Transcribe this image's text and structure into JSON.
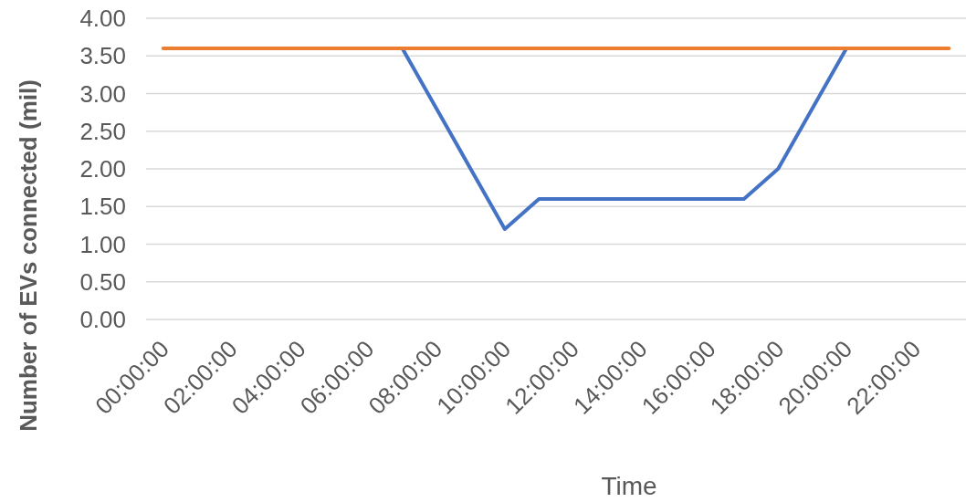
{
  "chart_data": {
    "type": "line",
    "xlabel": "Time",
    "ylabel": "Number of EVs connected (mil)",
    "categories": [
      "00:00:00",
      null,
      "02:00:00",
      null,
      "04:00:00",
      null,
      "06:00:00",
      null,
      "08:00:00",
      null,
      "10:00:00",
      null,
      "12:00:00",
      null,
      "14:00:00",
      null,
      "16:00:00",
      null,
      "18:00:00",
      null,
      "20:00:00",
      null,
      "22:00:00",
      null
    ],
    "series": [
      {
        "color": "#4472c4",
        "values": [
          null,
          null,
          null,
          null,
          null,
          null,
          null,
          3.6,
          2.8,
          2.0,
          1.2,
          1.6,
          1.6,
          1.6,
          1.6,
          1.6,
          1.6,
          1.6,
          2.0,
          2.8,
          3.6,
          null,
          null,
          null
        ]
      },
      {
        "color": "#ed7d31",
        "values": [
          3.6,
          3.6,
          3.6,
          3.6,
          3.6,
          3.6,
          3.6,
          3.6,
          3.6,
          3.6,
          3.6,
          3.6,
          3.6,
          3.6,
          3.6,
          3.6,
          3.6,
          3.6,
          3.6,
          3.6,
          3.6,
          3.6,
          3.6,
          3.6
        ]
      }
    ],
    "ylim": [
      0,
      4
    ],
    "yticks": [
      {
        "value": 0,
        "label": "0.00"
      },
      {
        "value": 0.5,
        "label": "0.50"
      },
      {
        "value": 1,
        "label": "1.00"
      },
      {
        "value": 1.5,
        "label": "1.50"
      },
      {
        "value": 2,
        "label": "2.00"
      },
      {
        "value": 2.5,
        "label": "2.50"
      },
      {
        "value": 3,
        "label": "3.00"
      },
      {
        "value": 3.5,
        "label": "3.50"
      },
      {
        "value": 4,
        "label": "4.00"
      }
    ],
    "grid": "y",
    "marker": "none",
    "line_style": "solid"
  }
}
